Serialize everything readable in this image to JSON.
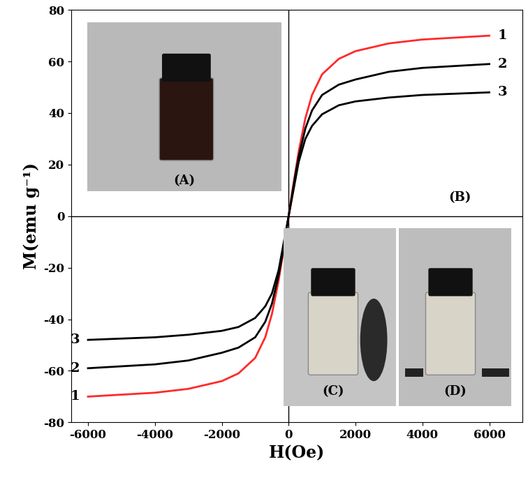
{
  "chart_data": {
    "type": "line",
    "x_label": "H(Oe)",
    "y_label": "M(emu g⁻¹)",
    "x": [
      -6000,
      -4000,
      -3000,
      -2000,
      -1500,
      -1000,
      -700,
      -500,
      -300,
      -200,
      -100,
      0,
      100,
      200,
      300,
      500,
      700,
      1000,
      1500,
      2000,
      3000,
      4000,
      6000
    ],
    "series": [
      {
        "name": "1",
        "color": "#ff2a2a",
        "values": [
          -70,
          -68.5,
          -67,
          -64,
          -61,
          -55,
          -47,
          -38,
          -25,
          -17,
          -9,
          0,
          9,
          17,
          25,
          38,
          47,
          55,
          61,
          64,
          67,
          68.5,
          70
        ]
      },
      {
        "name": "2",
        "color": "#000000",
        "values": [
          -59,
          -57.5,
          -56,
          -53,
          -51,
          -47,
          -41,
          -34,
          -23,
          -16,
          -8,
          0,
          8,
          16,
          23,
          34,
          41,
          47,
          51,
          53,
          56,
          57.5,
          59
        ]
      },
      {
        "name": "3",
        "color": "#000000",
        "values": [
          -48,
          -47,
          -46,
          -44.5,
          -43,
          -39.5,
          -35,
          -30,
          -21,
          -14,
          -7,
          0,
          7,
          14,
          21,
          30,
          35,
          39.5,
          43,
          44.5,
          46,
          47,
          48
        ]
      }
    ],
    "annotations": [
      "(A)",
      "(B)",
      "(C)",
      "(D)"
    ],
    "xlim": [
      -6500,
      7000
    ],
    "ylim": [
      -80,
      80
    ],
    "xticks": [
      -6000,
      -4000,
      -2000,
      0,
      2000,
      4000,
      6000
    ],
    "yticks": [
      -80,
      -60,
      -40,
      -20,
      0,
      20,
      40,
      60,
      80
    ],
    "grid": false
  }
}
